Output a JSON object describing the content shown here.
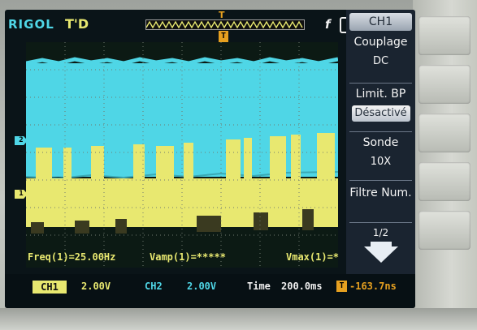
{
  "header": {
    "brand": "RIGOL",
    "trigger_status": "T'D",
    "trigger_marker": "T",
    "trigger_edge": "f"
  },
  "channels": {
    "ch1_marker": "1",
    "ch2_marker": "2"
  },
  "menu": {
    "title": "CH1",
    "items": [
      {
        "label": "Couplage",
        "value": "DC",
        "highlight": false
      },
      {
        "label": "Limit. BP",
        "value": "Désactivé",
        "highlight": true
      },
      {
        "label": "Sonde",
        "value": "10X",
        "highlight": false
      },
      {
        "label": "Filtre Num.",
        "value": "",
        "highlight": false
      }
    ],
    "page": "1/2"
  },
  "measurements": {
    "freq": "Freq(1)=25.00Hz",
    "vamp": "Vamp(1)=*****",
    "vmax": "Vmax(1)=*"
  },
  "status": {
    "ch1_label": "CH1",
    "ch1_scale": "2.00V",
    "ch2_label": "CH2",
    "ch2_scale": "2.00V",
    "time_label": "Time",
    "time_value": "200.0ms",
    "trigger_icon": "T",
    "trigger_position": "-163.7ns"
  },
  "colors": {
    "ch1": "#e8e870",
    "ch2": "#4fd6e6",
    "trigger": "#e6a020"
  },
  "icons": {
    "usb": "usb-icon",
    "trigger_edge": "rising-edge-icon",
    "page_next": "arrow-down-icon"
  }
}
